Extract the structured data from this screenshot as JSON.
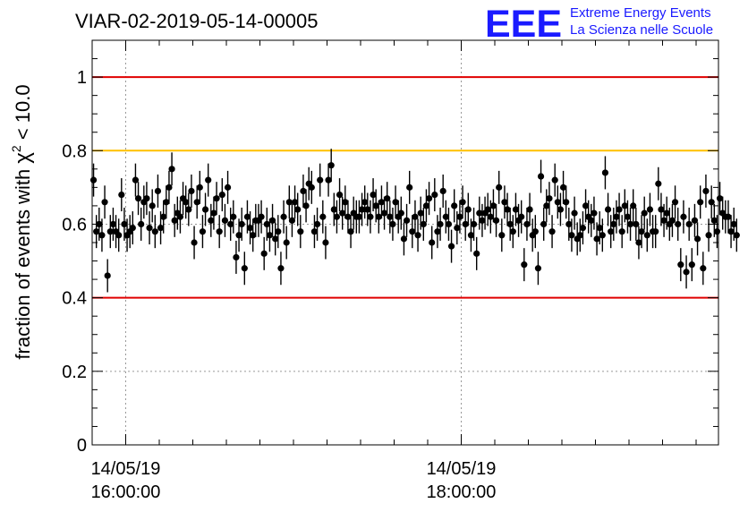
{
  "header": {
    "title": "VIAR-02-2019-05-14-00005",
    "logo_text": "EEE",
    "logo_line1": "Extreme Energy Events",
    "logo_line2": "La Scienza nelle Scuole",
    "logo_color": "#1a1aff"
  },
  "chart_data": {
    "type": "scatter",
    "title": "VIAR-02-2019-05-14-00005",
    "xlabel": "",
    "ylabel_prefix": "fraction of events with ",
    "ylabel_symbol": "χ",
    "ylabel_exp": "2",
    "ylabel_suffix": " < 10.0",
    "x_unit": "minutes",
    "x_range_minutes": [
      948,
      1172
    ],
    "ylim": [
      0,
      1.1
    ],
    "yticks": [
      0,
      0.2,
      0.4,
      0.6,
      0.8,
      1
    ],
    "ytick_labels": [
      "0",
      "0.2",
      "0.4",
      "0.6",
      "0.8",
      "1"
    ],
    "xticks": [
      {
        "minutes": 960,
        "date": "14/05/19",
        "time": "16:00:00"
      },
      {
        "minutes": 1080,
        "date": "14/05/19",
        "time": "18:00:00"
      }
    ],
    "grid": "dotted",
    "reference_lines": [
      {
        "y": 1.0,
        "color": "#e00000"
      },
      {
        "y": 0.8,
        "color": "#ffc000"
      },
      {
        "y": 0.4,
        "color": "#e00000"
      }
    ],
    "error": 0.045,
    "step_minutes": 1.0,
    "values": [
      0.72,
      0.58,
      0.6,
      0.57,
      0.66,
      0.46,
      0.58,
      0.6,
      0.58,
      0.57,
      0.68,
      0.6,
      0.57,
      0.58,
      0.59,
      0.72,
      0.67,
      0.6,
      0.66,
      0.67,
      0.59,
      0.65,
      0.58,
      0.69,
      0.59,
      0.62,
      0.66,
      0.7,
      0.75,
      0.61,
      0.63,
      0.62,
      0.67,
      0.66,
      0.64,
      0.69,
      0.55,
      0.66,
      0.7,
      0.58,
      0.64,
      0.72,
      0.61,
      0.63,
      0.67,
      0.58,
      0.68,
      0.61,
      0.7,
      0.6,
      0.62,
      0.51,
      0.57,
      0.6,
      0.48,
      0.62,
      0.59,
      0.57,
      0.61,
      0.61,
      0.62,
      0.52,
      0.6,
      0.57,
      0.61,
      0.56,
      0.58,
      0.48,
      0.62,
      0.55,
      0.66,
      0.61,
      0.66,
      0.64,
      0.58,
      0.69,
      0.65,
      0.71,
      0.7,
      0.58,
      0.6,
      0.72,
      0.62,
      0.55,
      0.72,
      0.76,
      0.64,
      0.62,
      0.68,
      0.63,
      0.66,
      0.62,
      0.58,
      0.63,
      0.62,
      0.62,
      0.64,
      0.66,
      0.64,
      0.62,
      0.68,
      0.65,
      0.62,
      0.66,
      0.63,
      0.67,
      0.62,
      0.6,
      0.66,
      0.62,
      0.63,
      0.56,
      0.61,
      0.7,
      0.58,
      0.62,
      0.57,
      0.63,
      0.6,
      0.65,
      0.67,
      0.55,
      0.68,
      0.58,
      0.6,
      0.69,
      0.62,
      0.6,
      0.54,
      0.65,
      0.59,
      0.62,
      0.66,
      0.6,
      0.64,
      0.57,
      0.6,
      0.52,
      0.63,
      0.61,
      0.63,
      0.64,
      0.62,
      0.65,
      0.61,
      0.7,
      0.57,
      0.66,
      0.64,
      0.6,
      0.58,
      0.64,
      0.61,
      0.62,
      0.49,
      0.6,
      0.64,
      0.57,
      0.58,
      0.48,
      0.73,
      0.6,
      0.65,
      0.67,
      0.58,
      0.72,
      0.66,
      0.64,
      0.7,
      0.66,
      0.6,
      0.57,
      0.63,
      0.56,
      0.57,
      0.59,
      0.65,
      0.62,
      0.61,
      0.63,
      0.56,
      0.59,
      0.57,
      0.74,
      0.64,
      0.58,
      0.6,
      0.62,
      0.64,
      0.58,
      0.65,
      0.62,
      0.6,
      0.65,
      0.6,
      0.55,
      0.58,
      0.63,
      0.57,
      0.64,
      0.58,
      0.58,
      0.71,
      0.64,
      0.61,
      0.63,
      0.6,
      0.61,
      0.66,
      0.6,
      0.49,
      0.62,
      0.47,
      0.6,
      0.49,
      0.61,
      0.56,
      0.66,
      0.48,
      0.69,
      0.57,
      0.66,
      0.61,
      0.58,
      0.67,
      0.63,
      0.62,
      0.62,
      0.58,
      0.6,
      0.57
    ]
  }
}
